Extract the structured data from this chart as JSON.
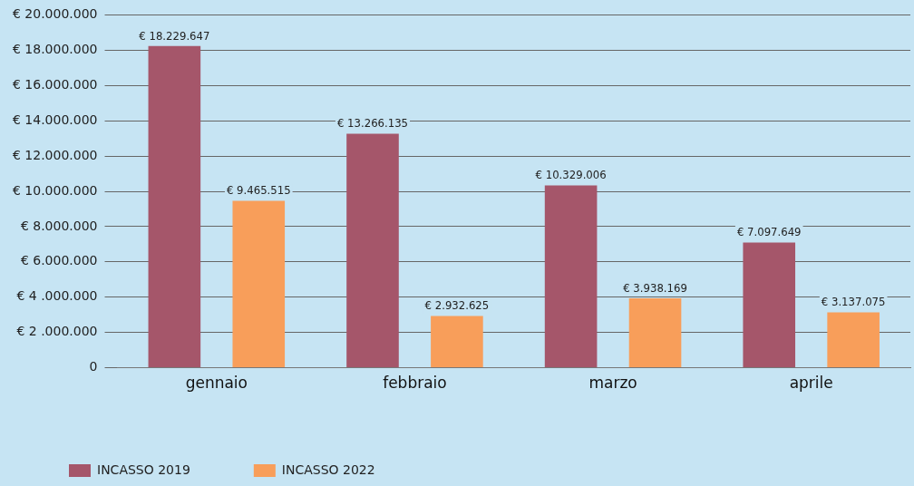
{
  "chart_data": {
    "type": "bar",
    "categories": [
      "gennaio",
      "febbraio",
      "marzo",
      "aprile"
    ],
    "series": [
      {
        "name": "INCASSO 2019",
        "color": "#a5566a",
        "values": [
          18229647,
          13266135,
          10329006,
          7097649
        ],
        "value_labels": [
          "€ 18.229.647",
          "€ 13.266.135",
          "€ 10.329.006",
          "€ 7.097.649"
        ]
      },
      {
        "name": "INCASSO 2022",
        "color": "#f89e5a",
        "values": [
          9465515,
          2932625,
          3938169,
          3137075
        ],
        "value_labels": [
          "€ 9.465.515",
          "€ 2.932.625",
          "€ 3.938.169",
          "€ 3.137.075"
        ]
      }
    ],
    "ylim": [
      0,
      20000000
    ],
    "yticks": [
      {
        "value": 0,
        "label": "0"
      },
      {
        "value": 2000000,
        "label": "€ 2 .000.000"
      },
      {
        "value": 4000000,
        "label": "€ 4 .000.000"
      },
      {
        "value": 6000000,
        "label": "€ 6.000.000"
      },
      {
        "value": 8000000,
        "label": "€ 8.000.000"
      },
      {
        "value": 10000000,
        "label": "€ 10.000.000"
      },
      {
        "value": 12000000,
        "label": "€ 12.000.000"
      },
      {
        "value": 14000000,
        "label": "€ 14.000.000"
      },
      {
        "value": 16000000,
        "label": "€ 16.000.000"
      },
      {
        "value": 18000000,
        "label": "€ 18.000.000"
      },
      {
        "value": 20000000,
        "label": "€ 20.000.000"
      }
    ],
    "grid": "y",
    "legend": "bottom left"
  }
}
